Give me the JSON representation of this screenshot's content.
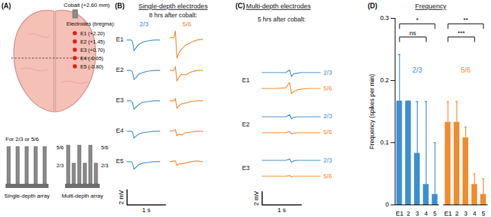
{
  "panel_labels": [
    "(A)",
    "(B)",
    "(C)",
    "(D)"
  ],
  "panel_A": {
    "cobalt": "Cobalt (+2.60 mm)",
    "electrodes_title": "Electrodes (bregma):",
    "electrodes": [
      "E1 (+2.20)",
      "E2 (+1.45)",
      "E3 (+0.70)",
      "E4 (-0.05)",
      "E5 (-0.80)"
    ],
    "single_depth_array": {
      "depths": "For 2/3 or 5/6",
      "caption": "Single-depth array"
    },
    "multi_depth_array": {
      "left_labels": [
        "5/6",
        "2/3"
      ],
      "right_labels": [
        "5/6",
        "2/3"
      ],
      "caption": "Multi-depth array"
    }
  },
  "panel_B": {
    "type": "line",
    "title": "Single-depth electrodes",
    "subtitle": "8 hrs after cobalt:",
    "rows": [
      "E1",
      "E2",
      "E3",
      "E4",
      "E5"
    ],
    "x": [
      0,
      0.1,
      0.14,
      0.18,
      0.22,
      0.3,
      0.4,
      0.55,
      0.7,
      0.85
    ],
    "series": [
      {
        "name": "2/3",
        "color": "#3b8fd0",
        "values": [
          [
            0,
            0,
            -0.2,
            -1.4,
            -1.1,
            -0.6,
            -0.3,
            -0.1,
            0,
            0
          ],
          [
            0,
            0,
            -0.2,
            -1.2,
            -1.0,
            -0.5,
            -0.3,
            -0.1,
            0,
            0
          ],
          [
            0,
            0,
            -0.2,
            -1.1,
            -0.9,
            -0.5,
            -0.2,
            -0.1,
            0,
            0
          ],
          [
            0,
            0,
            -0.1,
            -0.9,
            -0.7,
            -0.4,
            -0.2,
            -0.1,
            0,
            0
          ],
          [
            0,
            0,
            -0.2,
            -1.0,
            -0.8,
            -0.4,
            -0.2,
            -0.1,
            0,
            0
          ]
        ]
      },
      {
        "name": "5/6",
        "color": "#f28a2e",
        "values": [
          [
            0.3,
            0.3,
            1.2,
            -2.4,
            -1.8,
            -1.2,
            -0.7,
            -0.3,
            0,
            0.1
          ],
          [
            0,
            0,
            0.5,
            -1.4,
            -1.0,
            -0.5,
            -0.6,
            -0.2,
            0,
            0
          ],
          [
            0,
            0,
            0.3,
            -1.0,
            -0.7,
            -0.4,
            -0.3,
            -0.1,
            0,
            0
          ],
          [
            0,
            0.1,
            0.2,
            -0.6,
            -0.4,
            -0.5,
            -0.2,
            -0.1,
            0,
            0
          ],
          [
            0,
            0.1,
            0.1,
            -0.5,
            -0.3,
            -0.3,
            -0.2,
            0,
            0.1,
            0
          ]
        ]
      }
    ],
    "xlim": [
      0,
      0.9
    ],
    "ylim": [
      -2.6,
      1.4
    ],
    "tick_labels": false,
    "scale_bar": {
      "x": 1,
      "x_label": "1 s",
      "y": 2,
      "y_label": "2 mV"
    }
  },
  "panel_C": {
    "type": "line",
    "title": "Multi-depth electrodes",
    "subtitle": "5 hrs after cobalt:",
    "rows": [
      "E1",
      "E2",
      "E3"
    ],
    "x": [
      0,
      0.3,
      0.6,
      0.7,
      0.75,
      0.8,
      0.9,
      1.0,
      1.2,
      1.5
    ],
    "series": [
      {
        "name": "2/3",
        "color": "#3b8fd0",
        "values": [
          [
            0,
            0,
            0,
            0.4,
            -0.6,
            -0.2,
            -0.1,
            0,
            0,
            0
          ],
          [
            0,
            0,
            0,
            0.3,
            -0.3,
            -0.1,
            0,
            0,
            0,
            0
          ],
          [
            0,
            0,
            0,
            0.2,
            -0.3,
            -0.1,
            0,
            0,
            0,
            0
          ]
        ]
      },
      {
        "name": "5/6",
        "color": "#f28a2e",
        "values": [
          [
            0,
            0,
            0.1,
            0.9,
            -0.8,
            -0.5,
            -0.2,
            -0.1,
            0,
            0
          ],
          [
            0,
            0,
            0,
            0.2,
            -0.2,
            -0.1,
            0,
            0,
            0,
            0
          ],
          [
            0,
            0,
            0,
            0.1,
            -0.1,
            0,
            0,
            0,
            0,
            0
          ]
        ]
      }
    ],
    "xlim": [
      0,
      1.5
    ],
    "ylim": [
      -1.2,
      1.2
    ],
    "tick_labels": false,
    "scale_bar": {
      "x": 1,
      "x_label": "1 s",
      "y": 2,
      "y_label": "2 mV"
    }
  },
  "chart_data": {
    "type": "bar",
    "title": "Frequency",
    "y_label": "Frequency (spikes per min)",
    "categories": [
      "E1",
      "2",
      "3",
      "4",
      "5"
    ],
    "series": [
      {
        "name": "2/3",
        "color": "#3b8fd0",
        "values": [
          0.167,
          0.167,
          0.083,
          0.033,
          0.017
        ],
        "errors": [
          0.075,
          0,
          0.083,
          0.133,
          0.083
        ]
      },
      {
        "name": "5/6",
        "color": "#f28a2e",
        "values": [
          0.133,
          0.133,
          0.108,
          0.033,
          0.017
        ],
        "errors": [
          0.033,
          0.033,
          0.017,
          0.017,
          0.025
        ]
      }
    ],
    "ylim": [
      0,
      0.3
    ],
    "yticks": [
      0,
      0.1,
      0.2,
      0.3
    ],
    "significance": [
      {
        "series": "2/3",
        "from": "E1",
        "to": "5",
        "label": "*"
      },
      {
        "series": "2/3",
        "from": "E1",
        "to": "4",
        "label": "ns"
      },
      {
        "series": "5/6",
        "from": "E1",
        "to": "5",
        "label": "**"
      },
      {
        "series": "5/6",
        "from": "E1",
        "to": "4",
        "label": "***"
      }
    ]
  }
}
